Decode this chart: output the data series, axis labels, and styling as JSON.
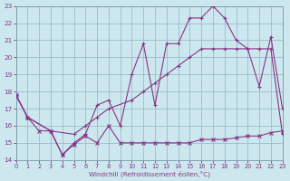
{
  "bg_color": "#cce8ee",
  "line_color": "#883388",
  "grid_color": "#99bbcc",
  "xlabel": "Windchill (Refroidissement éolien,°C)",
  "xlim": [
    0,
    23
  ],
  "ylim": [
    14,
    23
  ],
  "yticks": [
    14,
    15,
    16,
    17,
    18,
    19,
    20,
    21,
    22,
    23
  ],
  "xticks": [
    0,
    1,
    2,
    3,
    4,
    5,
    6,
    7,
    8,
    9,
    10,
    11,
    12,
    13,
    14,
    15,
    16,
    17,
    18,
    19,
    20,
    21,
    22,
    23
  ],
  "line1_x": [
    0,
    1,
    2,
    3,
    4,
    5,
    6,
    7,
    8,
    9,
    10,
    11,
    12,
    13,
    14,
    15,
    16,
    17,
    18,
    19,
    20,
    21,
    22,
    23
  ],
  "line1_y": [
    17.8,
    16.5,
    15.7,
    15.7,
    14.3,
    14.9,
    15.4,
    15.0,
    16.0,
    15.0,
    15.0,
    15.0,
    15.0,
    15.0,
    15.0,
    15.0,
    15.2,
    15.2,
    15.2,
    15.3,
    15.4,
    15.4,
    15.6,
    15.7
  ],
  "line2_x": [
    0,
    1,
    3,
    4,
    5,
    6,
    7,
    8,
    9,
    10,
    11,
    12,
    13,
    14,
    15,
    16,
    17,
    18,
    19,
    20,
    21,
    22,
    23
  ],
  "line2_y": [
    17.8,
    16.5,
    15.7,
    14.3,
    15.0,
    15.5,
    17.2,
    17.5,
    16.0,
    19.0,
    20.8,
    17.2,
    20.8,
    20.8,
    22.3,
    22.3,
    23.0,
    22.3,
    21.0,
    20.5,
    18.3,
    21.2,
    17.0
  ],
  "line3_x": [
    0,
    1,
    3,
    5,
    6,
    7,
    8,
    10,
    11,
    12,
    13,
    14,
    15,
    16,
    17,
    18,
    19,
    20,
    21,
    22,
    23
  ],
  "line3_y": [
    17.8,
    16.5,
    15.7,
    15.5,
    16.0,
    16.5,
    17.0,
    17.5,
    18.0,
    18.5,
    19.0,
    19.5,
    20.0,
    20.5,
    20.5,
    20.5,
    20.5,
    20.5,
    20.5,
    20.5,
    15.5
  ]
}
